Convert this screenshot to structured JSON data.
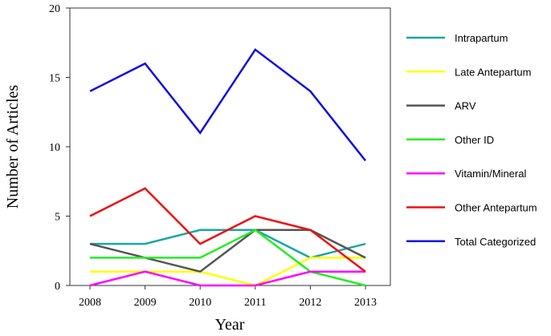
{
  "chart_data": {
    "type": "line",
    "xlabel": "Year",
    "ylabel": "Number of Articles",
    "x": [
      2008,
      2009,
      2010,
      2011,
      2012,
      2013
    ],
    "x_ticks": [
      "2008",
      "2009",
      "2010",
      "2011",
      "2012",
      "2013"
    ],
    "ylim": [
      0,
      20
    ],
    "y_ticks": [
      "0",
      "5",
      "10",
      "15",
      "20"
    ],
    "grid": false,
    "legend_position": "right",
    "series": [
      {
        "name": "Intrapartum",
        "color": "#1aa6a6",
        "values": [
          3,
          3,
          4,
          4,
          2,
          3
        ]
      },
      {
        "name": "Late Antepartum",
        "color": "#ffff00",
        "values": [
          1,
          1,
          1,
          0,
          2,
          2
        ]
      },
      {
        "name": "ARV",
        "color": "#555555",
        "values": [
          3,
          2,
          1,
          4,
          4,
          2
        ]
      },
      {
        "name": "Other ID",
        "color": "#22ee22",
        "values": [
          2,
          2,
          2,
          4,
          1,
          0
        ]
      },
      {
        "name": "Vitamin/Mineral",
        "color": "#ff00ff",
        "values": [
          0,
          1,
          0,
          0,
          1,
          1
        ]
      },
      {
        "name": "Other Antepartum",
        "color": "#ee1111",
        "values": [
          5,
          7,
          3,
          5,
          4,
          1
        ]
      },
      {
        "name": "Total Categorized",
        "color": "#1111dd",
        "values": [
          14,
          16,
          11,
          17,
          14,
          9
        ]
      }
    ]
  }
}
